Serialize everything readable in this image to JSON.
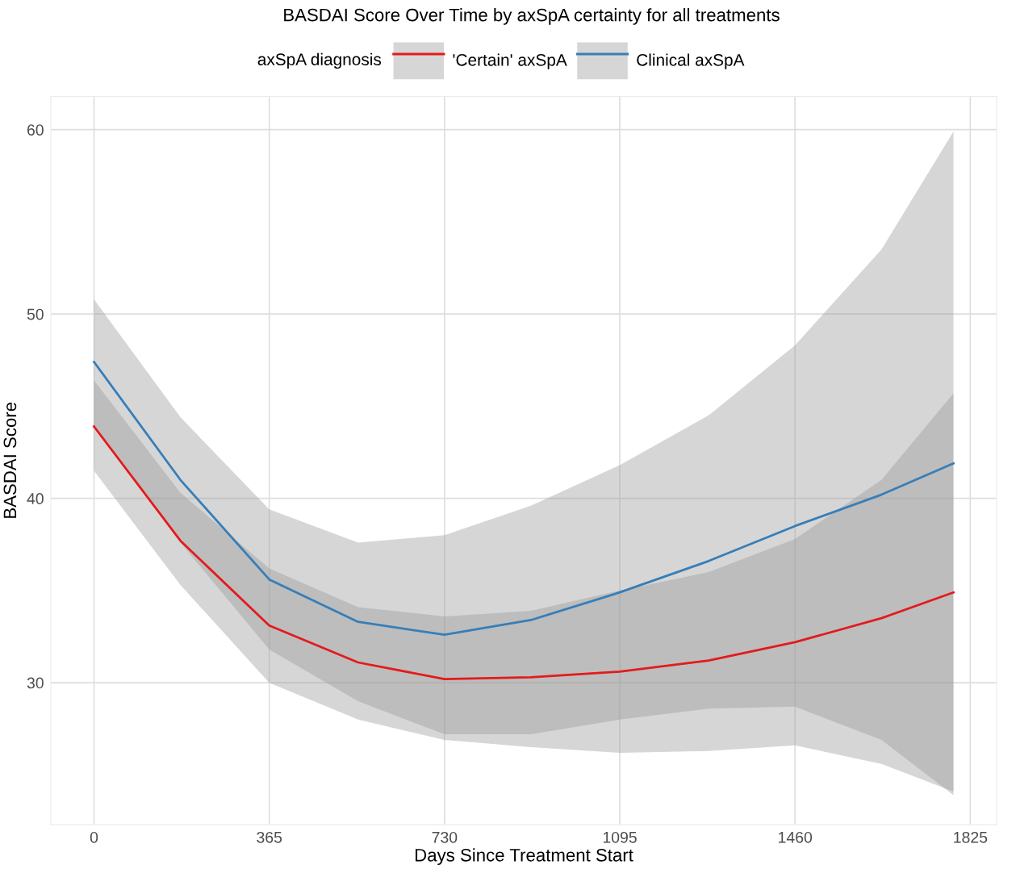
{
  "chart_data": {
    "type": "line",
    "title": "BASDAI Score Over Time by axSpA certainty for all treatments",
    "xlabel": "Days Since Treatment Start",
    "ylabel": "BASDAI Score",
    "legend_title": "axSpA diagnosis",
    "x": [
      0,
      180,
      365,
      550,
      730,
      910,
      1095,
      1280,
      1460,
      1640,
      1790
    ],
    "series": [
      {
        "name": "'Certain' axSpA",
        "color": "#e41a1c",
        "values": [
          43.9,
          37.7,
          33.1,
          31.1,
          30.2,
          30.3,
          30.6,
          31.2,
          32.2,
          33.5,
          34.9
        ],
        "upper": [
          46.4,
          40.3,
          36.2,
          34.1,
          33.6,
          33.9,
          35.0,
          36.0,
          37.8,
          41.0,
          45.7
        ],
        "lower": [
          41.5,
          35.3,
          30.0,
          28.0,
          26.9,
          26.5,
          26.2,
          26.3,
          26.6,
          25.6,
          24.1
        ]
      },
      {
        "name": "Clinical axSpA",
        "color": "#377eb8",
        "values": [
          47.4,
          41.0,
          35.6,
          33.3,
          32.6,
          33.4,
          34.9,
          36.6,
          38.5,
          40.2,
          41.9
        ],
        "upper": [
          50.8,
          44.4,
          39.4,
          37.6,
          38.0,
          39.6,
          41.8,
          44.5,
          48.3,
          53.5,
          59.9
        ],
        "lower": [
          44.0,
          37.6,
          31.8,
          29.0,
          27.2,
          27.2,
          28.0,
          28.6,
          28.7,
          26.9,
          23.9
        ]
      }
    ],
    "xlim": [
      -90,
      1880
    ],
    "ylim": [
      22.3,
      61.8
    ],
    "xticks": [
      0,
      365,
      730,
      1095,
      1460,
      1825
    ],
    "yticks": [
      30,
      40,
      50,
      60
    ],
    "grid": true,
    "legend": "top",
    "marker": "none",
    "line_style": "solid"
  }
}
